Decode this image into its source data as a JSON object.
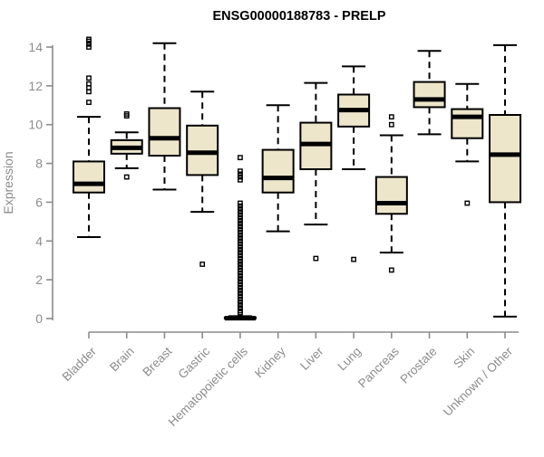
{
  "chart_data": {
    "type": "boxplot",
    "title": "ENSG00000188783 - PRELP",
    "ylabel": "Expression",
    "xlabel": "",
    "ylim": [
      0,
      14
    ],
    "yticks": [
      0,
      2,
      4,
      6,
      8,
      10,
      12,
      14
    ],
    "grid": false,
    "legend": "none",
    "colors": {
      "box_fill": "#EDE6CB",
      "box_border": "#000000",
      "median": "#000000",
      "whisker": "#000000",
      "axis": "#8C8C8C",
      "tick_label": "#8C8C8C",
      "title": "#000000",
      "background": "#FFFFFF"
    },
    "categories": [
      "Bladder",
      "Brain",
      "Breast",
      "Gastric",
      "Hematopoietic cells",
      "Kidney",
      "Liver",
      "Lung",
      "Pancreas",
      "Prostate",
      "Skin",
      "Unknown / Other"
    ],
    "series": [
      {
        "category": "Bladder",
        "whisker_low": 4.2,
        "q1": 6.5,
        "median": 6.95,
        "q3": 8.1,
        "whisker_high": 10.4,
        "outliers": [
          11.15,
          11.7,
          11.9,
          12.1,
          12.4,
          14.0,
          14.15,
          14.3,
          14.4
        ]
      },
      {
        "category": "Brain",
        "whisker_low": 7.75,
        "q1": 8.5,
        "median": 8.8,
        "q3": 9.2,
        "whisker_high": 9.6,
        "outliers": [
          7.3,
          10.45,
          10.55
        ]
      },
      {
        "category": "Breast",
        "whisker_low": 6.65,
        "q1": 8.4,
        "median": 9.3,
        "q3": 10.85,
        "whisker_high": 14.2,
        "outliers": []
      },
      {
        "category": "Gastric",
        "whisker_low": 5.5,
        "q1": 7.4,
        "median": 8.55,
        "q3": 9.95,
        "whisker_high": 11.7,
        "outliers": [
          2.8
        ]
      },
      {
        "category": "Hematopoietic cells",
        "whisker_low": 0.0,
        "q1": 0.0,
        "median": 0.02,
        "q3": 0.06,
        "whisker_high": 0.12,
        "outliers": [
          8.3,
          7.6,
          7.45,
          7.3,
          7.15,
          5.95,
          5.8,
          5.65,
          5.5,
          5.35,
          5.2,
          5.05,
          4.9,
          4.75,
          4.6,
          4.45,
          4.3,
          4.15,
          4.0,
          3.85,
          3.7,
          3.55,
          3.4,
          3.25,
          3.1,
          2.95,
          2.8,
          2.65,
          2.5,
          2.35,
          2.2,
          2.05,
          1.9,
          1.75,
          1.6,
          1.45,
          1.3,
          1.15,
          1.0,
          0.85,
          0.7,
          0.55,
          0.4,
          0.3
        ]
      },
      {
        "category": "Kidney",
        "whisker_low": 4.5,
        "q1": 6.5,
        "median": 7.25,
        "q3": 8.7,
        "whisker_high": 11.0,
        "outliers": []
      },
      {
        "category": "Liver",
        "whisker_low": 4.85,
        "q1": 7.7,
        "median": 9.0,
        "q3": 10.1,
        "whisker_high": 12.15,
        "outliers": [
          3.1
        ]
      },
      {
        "category": "Lung",
        "whisker_low": 7.7,
        "q1": 9.9,
        "median": 10.75,
        "q3": 11.55,
        "whisker_high": 13.0,
        "outliers": [
          3.05
        ]
      },
      {
        "category": "Pancreas",
        "whisker_low": 3.4,
        "q1": 5.4,
        "median": 5.95,
        "q3": 7.3,
        "whisker_high": 9.45,
        "outliers": [
          2.5,
          10.0,
          10.4
        ]
      },
      {
        "category": "Prostate",
        "whisker_low": 9.5,
        "q1": 10.9,
        "median": 11.3,
        "q3": 12.2,
        "whisker_high": 13.8,
        "outliers": []
      },
      {
        "category": "Skin",
        "whisker_low": 8.1,
        "q1": 9.3,
        "median": 10.4,
        "q3": 10.8,
        "whisker_high": 12.1,
        "outliers": [
          5.95
        ]
      },
      {
        "category": "Unknown / Other",
        "whisker_low": 0.1,
        "q1": 6.0,
        "median": 8.45,
        "q3": 10.5,
        "whisker_high": 14.1,
        "outliers": []
      }
    ]
  }
}
